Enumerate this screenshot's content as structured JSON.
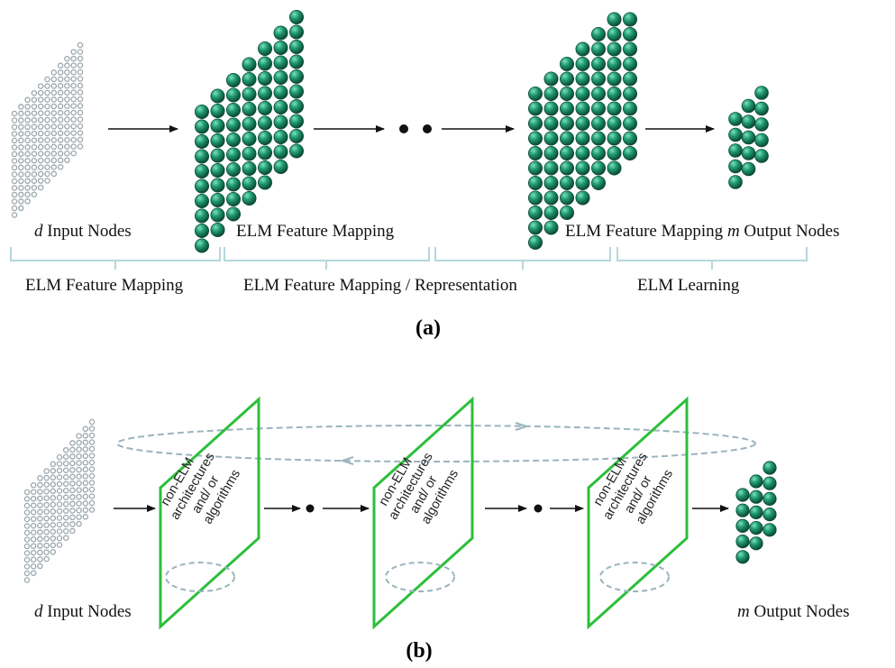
{
  "panel_a": {
    "label": "(a)",
    "input_label_var": "d",
    "input_label_text": " Input Nodes",
    "hidden1_label": "ELM Feature Mapping",
    "hidden2_label": "ELM Feature Mapping",
    "output_label_var": "m",
    "output_label_text": " Output Nodes",
    "brace1_label": "ELM Feature Mapping",
    "brace2_label": "ELM Feature Mapping / Representation",
    "brace3_label": "ELM Learning"
  },
  "panel_b": {
    "label": "(b)",
    "input_label_var": "d",
    "input_label_text": " Input Nodes",
    "output_label_var": "m",
    "output_label_text": " Output Nodes",
    "box_lines": [
      "non-ELM",
      "architectures",
      "and/ or",
      "algorithms"
    ]
  },
  "colors": {
    "node_fill": "#1f9a72",
    "node_stroke": "#0c4a36",
    "input_node": "#9aa6ad",
    "brace": "#b5d7dc",
    "box_border": "#2cbf3a",
    "loop": "#9ab4bd"
  }
}
